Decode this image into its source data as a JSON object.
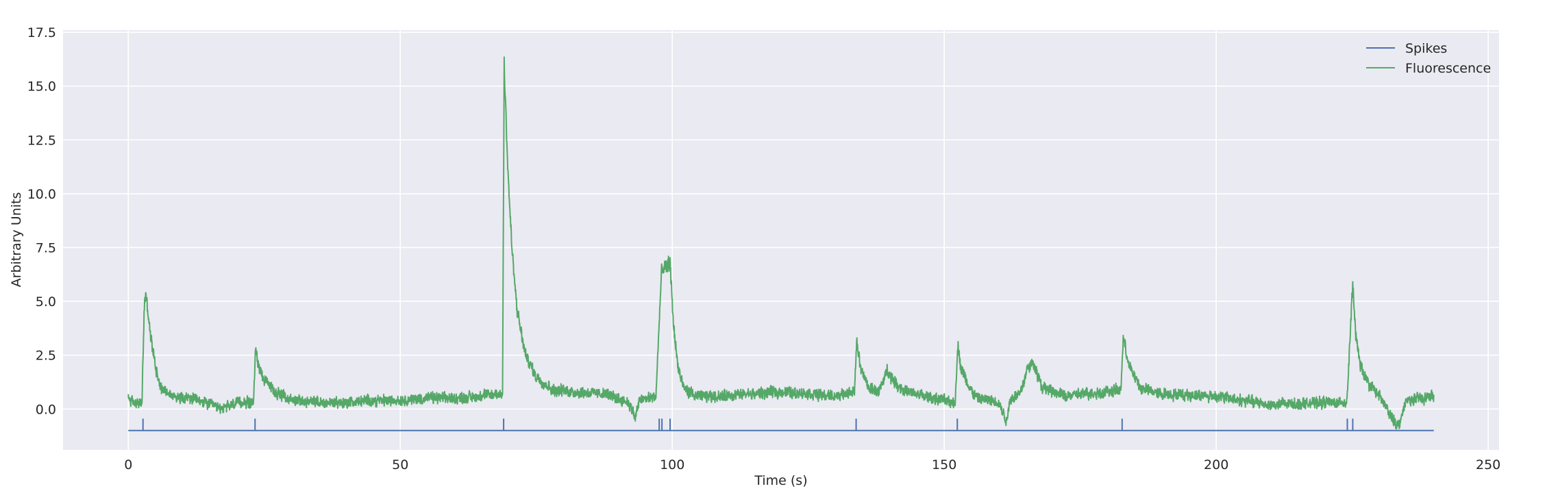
{
  "chart_data": {
    "type": "line",
    "title": "",
    "xlabel": "Time (s)",
    "ylabel": "Arbitrary Units",
    "xlim": [
      -12,
      252
    ],
    "ylim": [
      -1.9,
      17.6
    ],
    "xticks": [
      0,
      50,
      100,
      150,
      200,
      250
    ],
    "xtick_labels": [
      "0",
      "50",
      "100",
      "150",
      "200",
      "250"
    ],
    "yticks": [
      0.0,
      2.5,
      5.0,
      7.5,
      10.0,
      12.5,
      15.0,
      17.5
    ],
    "ytick_labels": [
      "0.0",
      "2.5",
      "5.0",
      "7.5",
      "10.0",
      "12.5",
      "15.0",
      "17.5"
    ],
    "grid": true,
    "legend_position": "top-right",
    "colors": {
      "background": "#EAEAF2",
      "grid": "#FFFFFF",
      "spikes": "#4C72B0",
      "fluorescence": "#55A868"
    },
    "series": [
      {
        "name": "Spikes",
        "kind": "step",
        "baseline": -1.0,
        "spike_height": -0.45,
        "x_range": [
          0,
          240
        ],
        "spike_times": [
          2.7,
          23.3,
          69.0,
          97.6,
          98.1,
          99.6,
          133.8,
          152.4,
          182.7,
          224.1,
          225.1
        ]
      },
      {
        "name": "Fluorescence",
        "kind": "noisy_trace",
        "noise_amplitude": 0.45,
        "x": [
          0,
          1,
          2.5,
          2.9,
          3.2,
          4,
          5,
          6,
          8,
          10,
          14,
          17,
          20,
          23,
          23.4,
          23.8,
          25,
          27,
          30,
          35,
          40,
          45,
          50,
          55,
          60,
          65,
          68.8,
          69.1,
          69.4,
          69.8,
          70.5,
          71.5,
          73,
          75,
          78,
          82,
          88,
          92,
          93.2,
          94,
          97,
          97.6,
          98,
          99.6,
          100.2,
          101,
          102,
          104,
          110,
          120,
          130,
          133.5,
          133.9,
          134.5,
          136,
          138,
          139.5,
          141,
          143,
          148,
          152,
          152.5,
          153,
          154.5,
          156,
          160,
          161.5,
          162,
          164,
          165.5,
          166.5,
          168,
          172,
          180,
          182.5,
          182.9,
          184,
          186,
          190,
          200,
          210,
          220,
          224,
          224.5,
          225.1,
          225.6,
          226.5,
          228,
          230,
          232,
          233.5,
          235,
          240
        ],
        "y": [
          0.5,
          0.3,
          0.2,
          4.5,
          5.4,
          3.5,
          2.0,
          1.0,
          0.6,
          0.6,
          0.3,
          0.0,
          0.3,
          0.3,
          2.8,
          2.2,
          1.3,
          0.8,
          0.4,
          0.3,
          0.3,
          0.4,
          0.4,
          0.5,
          0.5,
          0.6,
          0.7,
          16.2,
          14.0,
          11.0,
          7.5,
          4.5,
          2.5,
          1.5,
          0.9,
          0.8,
          0.7,
          0.3,
          -0.4,
          0.4,
          0.6,
          4.0,
          6.3,
          6.8,
          4.0,
          2.0,
          1.0,
          0.6,
          0.6,
          0.8,
          0.6,
          0.8,
          3.3,
          2.0,
          1.0,
          0.8,
          1.8,
          1.2,
          0.8,
          0.5,
          0.3,
          3.0,
          2.0,
          1.0,
          0.5,
          0.3,
          -0.6,
          0.4,
          0.8,
          2.0,
          2.1,
          1.0,
          0.6,
          0.8,
          0.9,
          3.3,
          2.0,
          1.0,
          0.7,
          0.6,
          0.2,
          0.3,
          0.3,
          2.7,
          5.9,
          3.5,
          2.0,
          1.2,
          0.6,
          -0.3,
          -0.8,
          0.4,
          0.6
        ]
      }
    ]
  }
}
